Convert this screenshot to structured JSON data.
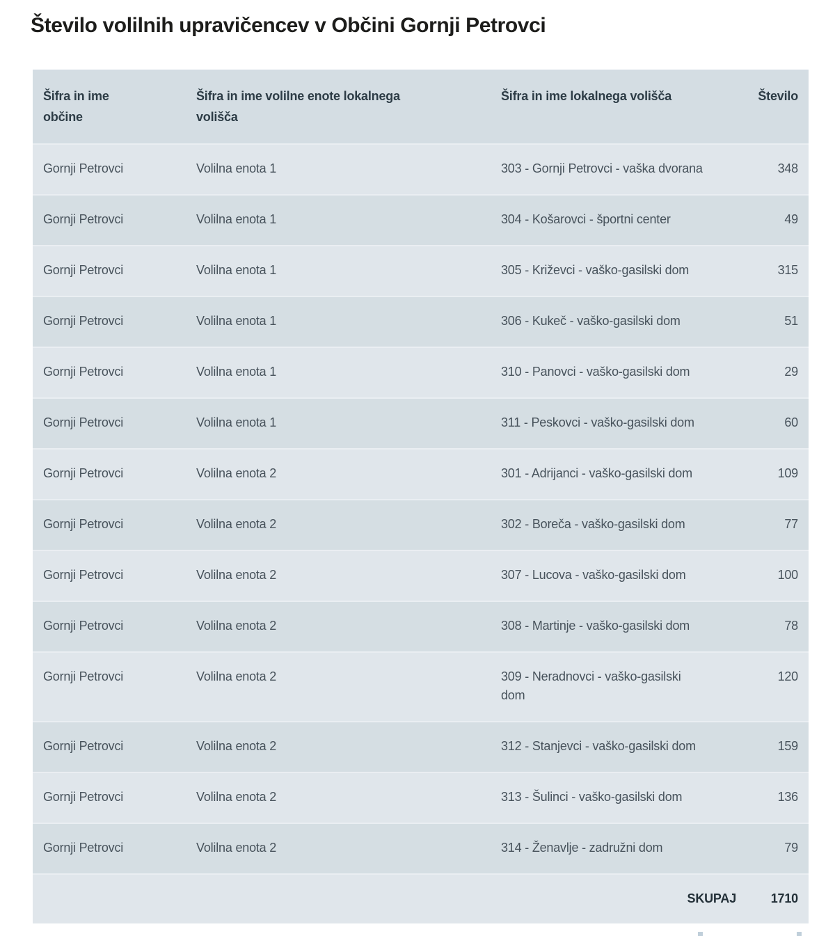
{
  "page": {
    "title": "Število volilnih upravičencev v Občini Gornji Petrovci"
  },
  "table": {
    "columns": [
      "Šifra in ime\nobčine",
      "Šifra in ime volilne enote lokalnega\nvolišča",
      "Šifra in ime lokalnega volišča",
      "Število"
    ],
    "rows": [
      {
        "obcina": "Gornji Petrovci",
        "enota": "Volilna enota 1",
        "volisce": "303 - Gornji Petrovci - vaška dvorana",
        "stevilo": 348
      },
      {
        "obcina": "Gornji Petrovci",
        "enota": "Volilna enota 1",
        "volisce": "304 - Košarovci - športni center",
        "stevilo": 49
      },
      {
        "obcina": "Gornji Petrovci",
        "enota": "Volilna enota 1",
        "volisce": "305 - Križevci - vaško-gasilski dom",
        "stevilo": 315
      },
      {
        "obcina": "Gornji Petrovci",
        "enota": "Volilna enota 1",
        "volisce": "306 - Kukeč - vaško-gasilski dom",
        "stevilo": 51
      },
      {
        "obcina": "Gornji Petrovci",
        "enota": "Volilna enota 1",
        "volisce": "310 - Panovci - vaško-gasilski dom",
        "stevilo": 29
      },
      {
        "obcina": "Gornji Petrovci",
        "enota": "Volilna enota 1",
        "volisce": "311 - Peskovci - vaško-gasilski dom",
        "stevilo": 60
      },
      {
        "obcina": "Gornji Petrovci",
        "enota": "Volilna enota 2",
        "volisce": "301 - Adrijanci - vaško-gasilski dom",
        "stevilo": 109
      },
      {
        "obcina": "Gornji Petrovci",
        "enota": "Volilna enota 2",
        "volisce": "302 - Boreča - vaško-gasilski dom",
        "stevilo": 77
      },
      {
        "obcina": "Gornji Petrovci",
        "enota": "Volilna enota 2",
        "volisce": "307 - Lucova - vaško-gasilski dom",
        "stevilo": 100
      },
      {
        "obcina": "Gornji Petrovci",
        "enota": "Volilna enota 2",
        "volisce": "308 - Martinje - vaško-gasilski dom",
        "stevilo": 78
      },
      {
        "obcina": "Gornji Petrovci",
        "enota": "Volilna enota 2",
        "volisce": "309 - Neradnovci - vaško-gasilski\ndom",
        "stevilo": 120
      },
      {
        "obcina": "Gornji Petrovci",
        "enota": "Volilna enota 2",
        "volisce": "312 - Stanjevci - vaško-gasilski dom",
        "stevilo": 159
      },
      {
        "obcina": "Gornji Petrovci",
        "enota": "Volilna enota 2",
        "volisce": "313 - Šulinci - vaško-gasilski dom",
        "stevilo": 136
      },
      {
        "obcina": "Gornji Petrovci",
        "enota": "Volilna enota 2",
        "volisce": "314 - Ženavlje - zadružni dom",
        "stevilo": 79
      }
    ],
    "total_label": "SKUPAJ",
    "total_value": 1710
  },
  "colors": {
    "header_bg": "#d4dde3",
    "row_light_bg": "#e0e6eb",
    "row_dark_bg": "#d5dee3",
    "row_separator": "#eaeef2",
    "title_text": "#1d1d1b",
    "header_text": "#2d3c46",
    "cell_text": "#47525b"
  }
}
